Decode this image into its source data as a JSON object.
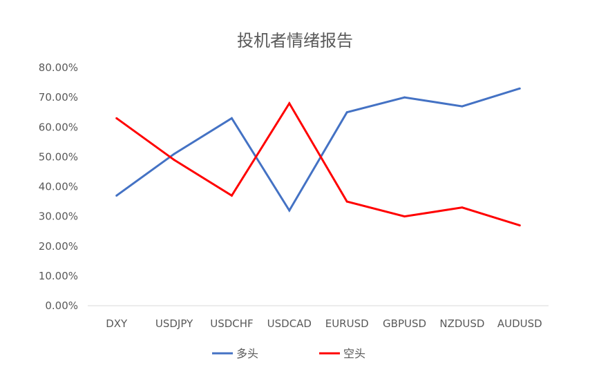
{
  "chart_data": {
    "type": "line",
    "title": "投机者情绪报告",
    "categories": [
      "DXY",
      "USDJPY",
      "USDCHF",
      "USDCAD",
      "EURUSD",
      "GBPUSD",
      "NZDUSD",
      "AUDUSD"
    ],
    "series": [
      {
        "name": "多头",
        "color": "#4472C4",
        "values": [
          37,
          51,
          63,
          32,
          65,
          70,
          67,
          73
        ]
      },
      {
        "name": "空头",
        "color": "#FF0000",
        "values": [
          63,
          49,
          37,
          68,
          35,
          30,
          33,
          27
        ]
      }
    ],
    "yticks": [
      "0.00%",
      "10.00%",
      "20.00%",
      "30.00%",
      "40.00%",
      "50.00%",
      "60.00%",
      "70.00%",
      "80.00%"
    ],
    "ylim": [
      0,
      80
    ],
    "xlabel": "",
    "ylabel": "",
    "grid": false,
    "legend": "bottom"
  }
}
